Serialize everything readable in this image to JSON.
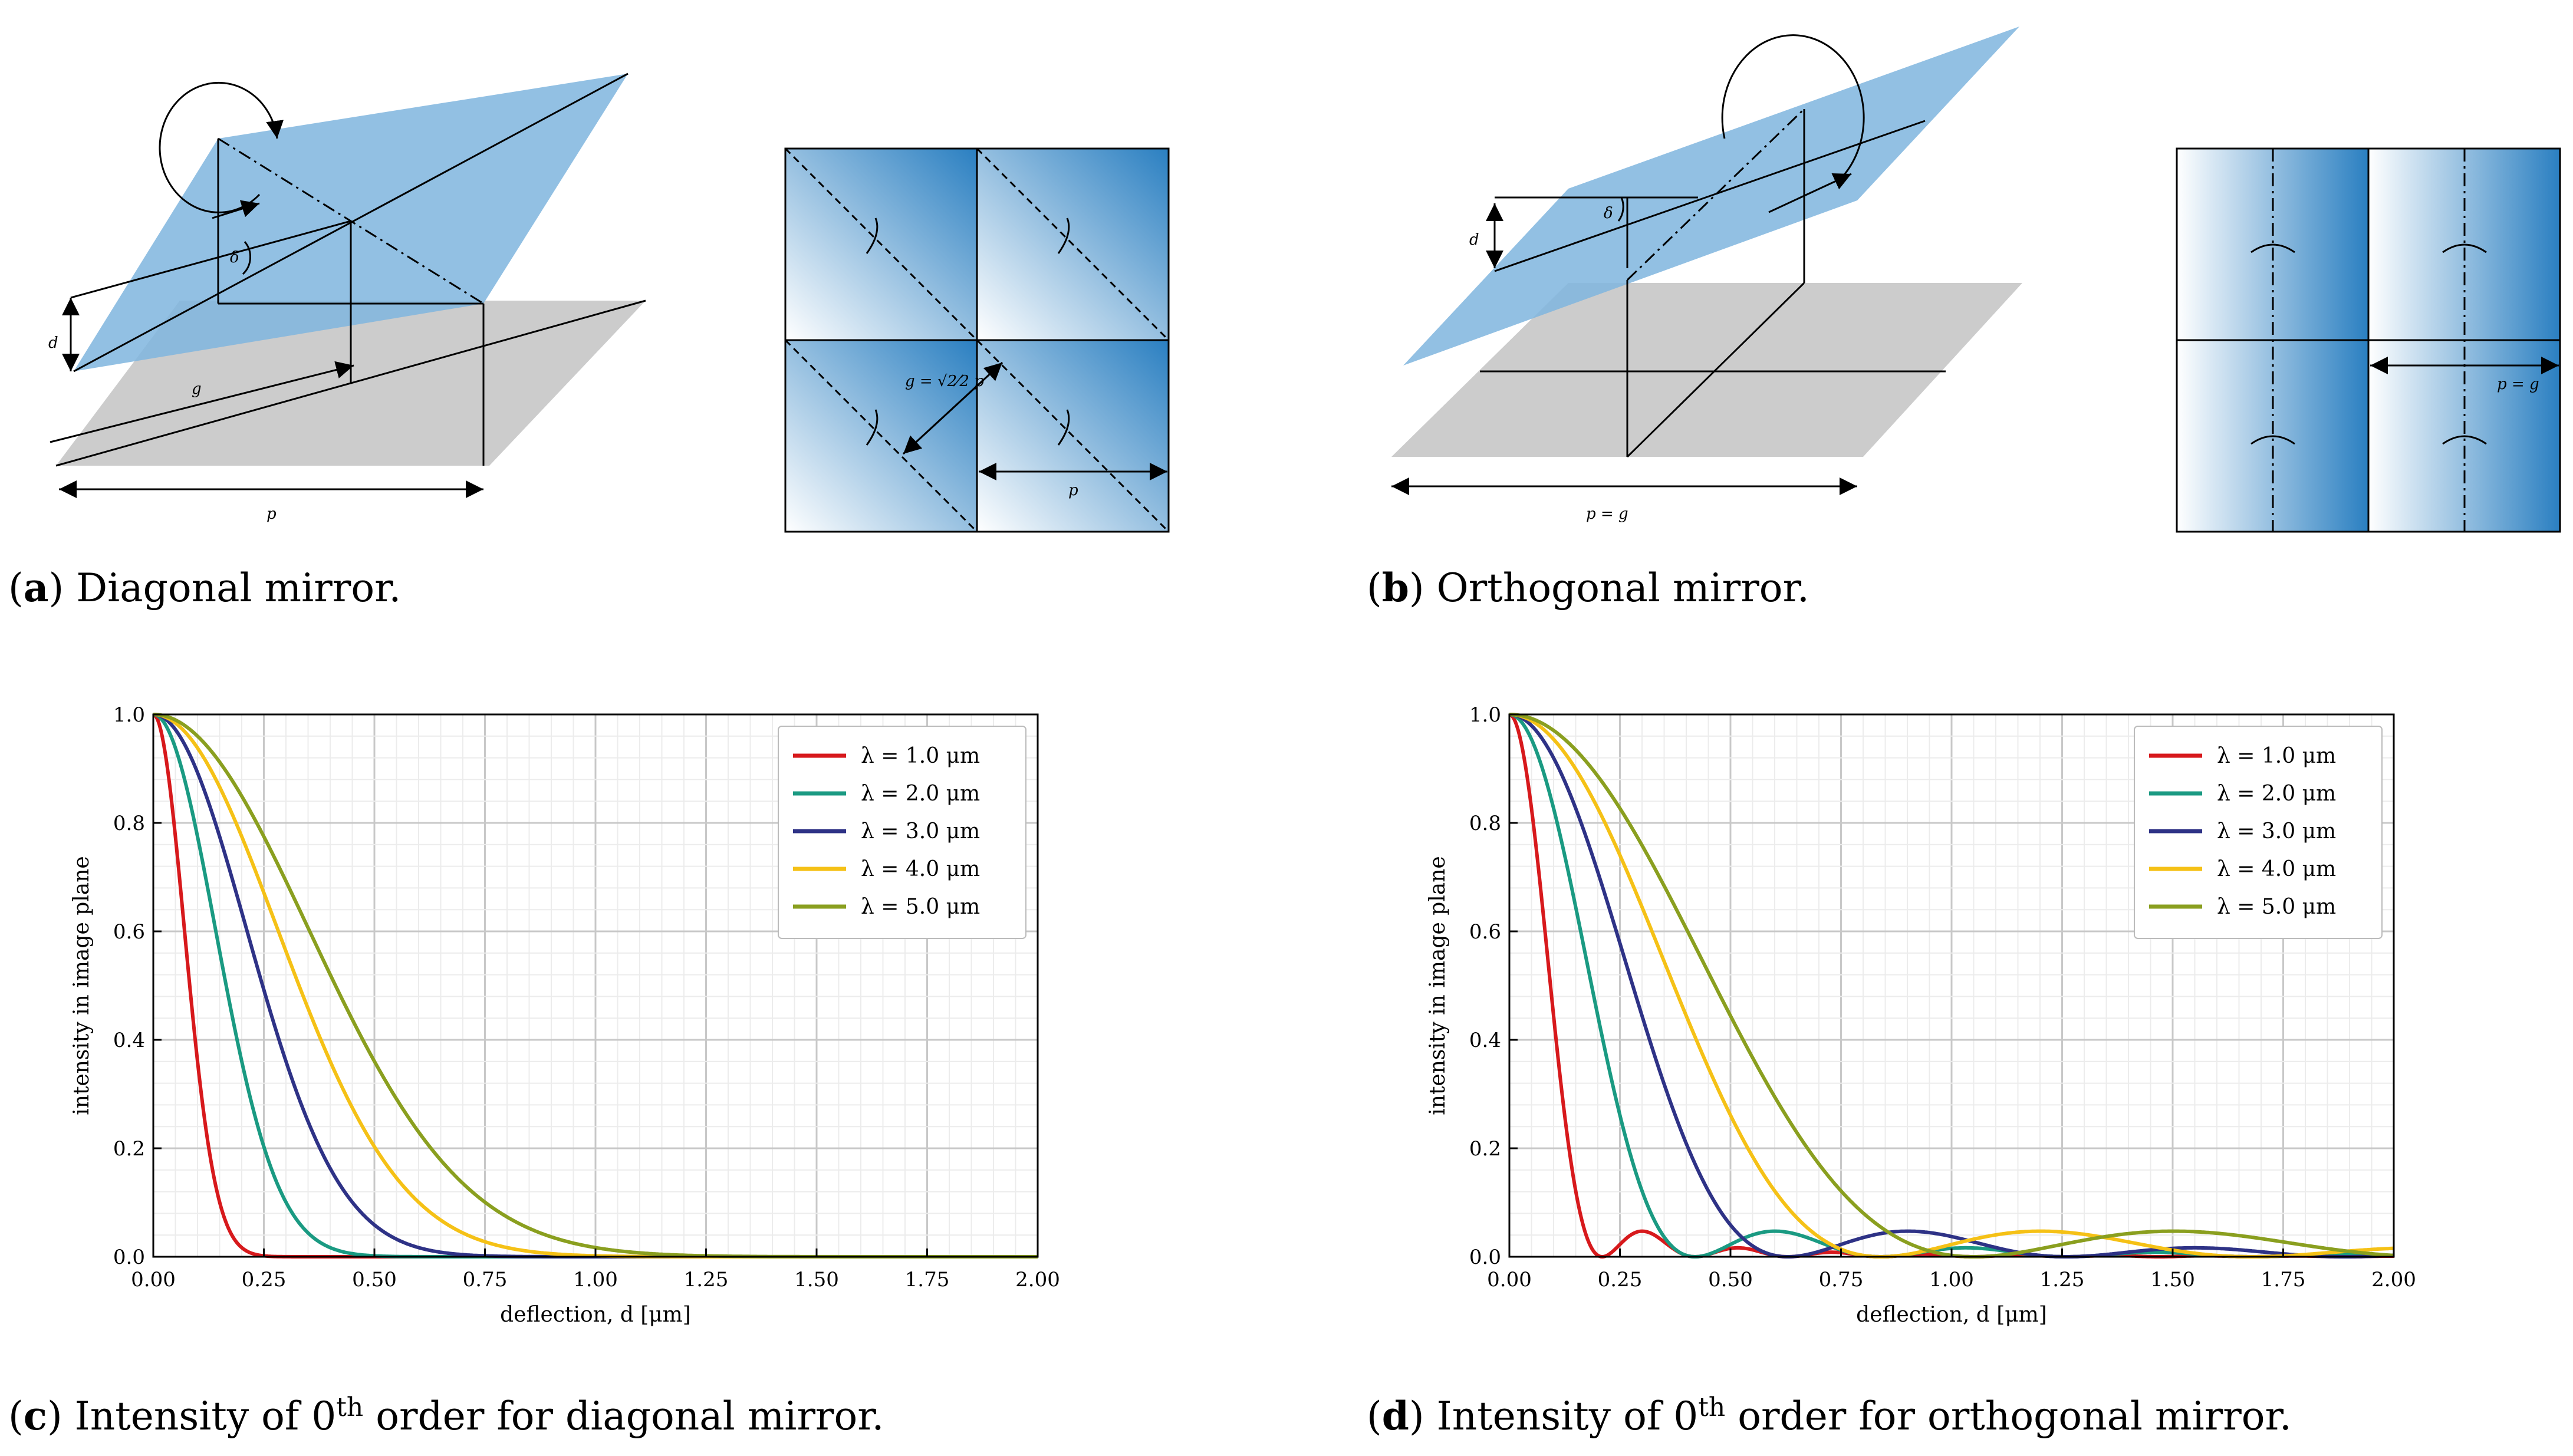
{
  "captions": {
    "a": {
      "letter": "a",
      "text": " Diagonal mirror."
    },
    "b": {
      "letter": "b",
      "text": " Orthogonal mirror."
    },
    "c": {
      "letter": "c",
      "pre": " Intensity of 0",
      "sup": "th",
      "post": " order for diagonal mirror."
    },
    "d": {
      "letter": "d",
      "pre": " Intensity of 0",
      "sup": "th",
      "post": " order for orthogonal mirror."
    }
  },
  "diagram_a": {
    "d_label": "d",
    "g_label": "g",
    "p_label": "p",
    "delta_label": "δ",
    "tile_g_label": "g = √2⁄2 p",
    "tile_p_label": "p"
  },
  "diagram_b": {
    "d_label": "d",
    "delta_label": "δ",
    "p_label": "p = g",
    "tile_p_label": "p = g"
  },
  "colors": {
    "red": "#d7191c",
    "teal": "#1a9a82",
    "navy": "#2e3286",
    "yellow": "#f5c116",
    "olive": "#8a9f1f",
    "mirror": "#7fb5de",
    "ground": "#cccccc",
    "tile_dark": "#2a7fc1"
  },
  "chart_data": [
    {
      "id": "c",
      "type": "line",
      "title": "",
      "xlabel": "deflection, d [μm]",
      "ylabel": "intensity in image plane",
      "xlim": [
        0,
        2.0
      ],
      "ylim": [
        0,
        1.0
      ],
      "xticks": [
        "0.00",
        "0.25",
        "0.50",
        "0.75",
        "1.00",
        "1.25",
        "1.50",
        "1.75",
        "2.00"
      ],
      "yticks": [
        "0.0",
        "0.2",
        "0.4",
        "0.6",
        "0.8",
        "1.0"
      ],
      "legend_position": "top-right",
      "grid": true,
      "model": "gaussian",
      "series": [
        {
          "name": "λ = 1.0 μm",
          "lambda": 1.0,
          "color": "#d7191c",
          "width_um": 0.14
        },
        {
          "name": "λ = 2.0 μm",
          "lambda": 2.0,
          "color": "#1a9a82",
          "width_um": 0.28
        },
        {
          "name": "λ = 3.0 μm",
          "lambda": 3.0,
          "color": "#2e3286",
          "width_um": 0.42
        },
        {
          "name": "λ = 4.0 μm",
          "lambda": 4.0,
          "color": "#f5c116",
          "width_um": 0.56
        },
        {
          "name": "λ = 5.0 μm",
          "lambda": 5.0,
          "color": "#8a9f1f",
          "width_um": 0.7
        }
      ]
    },
    {
      "id": "d",
      "type": "line",
      "title": "",
      "xlabel": "deflection, d [μm]",
      "ylabel": "intensity in image plane",
      "xlim": [
        0,
        2.0
      ],
      "ylim": [
        0,
        1.0
      ],
      "xticks": [
        "0.00",
        "0.25",
        "0.50",
        "0.75",
        "1.00",
        "1.25",
        "1.50",
        "1.75",
        "2.00"
      ],
      "yticks": [
        "0.0",
        "0.2",
        "0.4",
        "0.6",
        "0.8",
        "1.0"
      ],
      "legend_position": "top-right",
      "grid": true,
      "model": "sinc",
      "series": [
        {
          "name": "λ = 1.0 μm",
          "lambda": 1.0,
          "color": "#d7191c",
          "first_zero_um": 0.21
        },
        {
          "name": "λ = 2.0 μm",
          "lambda": 2.0,
          "color": "#1a9a82",
          "first_zero_um": 0.42
        },
        {
          "name": "λ = 3.0 μm",
          "lambda": 3.0,
          "color": "#2e3286",
          "first_zero_um": 0.63
        },
        {
          "name": "λ = 4.0 μm",
          "lambda": 4.0,
          "color": "#f5c116",
          "first_zero_um": 0.84
        },
        {
          "name": "λ = 5.0 μm",
          "lambda": 5.0,
          "color": "#8a9f1f",
          "first_zero_um": 1.05
        }
      ]
    }
  ]
}
